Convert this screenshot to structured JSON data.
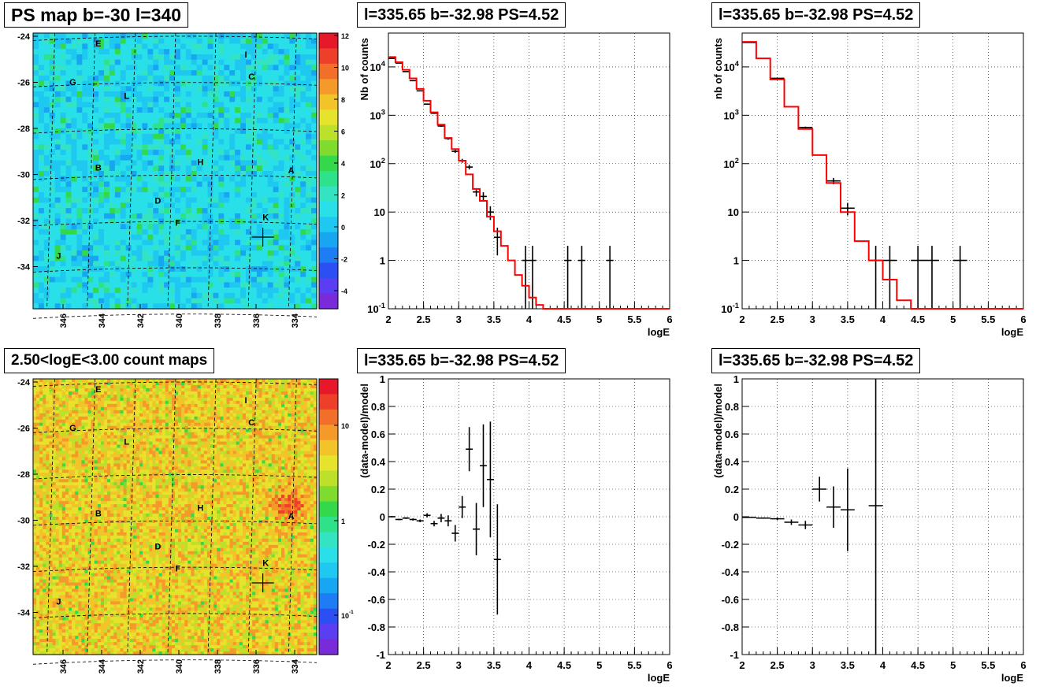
{
  "colors": {
    "data": "#000000",
    "model": "#ff0000",
    "grid": "#000000",
    "map_lines": "#000000"
  },
  "chart_data": [
    {
      "type": "heatmap",
      "title": "PS map b=-30 l=340",
      "x_ticks": [
        "346",
        "344",
        "342",
        "340",
        "338",
        "336",
        "334"
      ],
      "y_ticks": [
        "-24",
        "-26",
        "-28",
        "-30",
        "-32",
        "-34"
      ],
      "colorbar_ticks": [
        "12",
        "10",
        "8",
        "6",
        "4",
        "2",
        "0",
        "-2",
        "-4"
      ],
      "colormap": "rainbow",
      "dominant_color": "cyan",
      "sources": [
        "E",
        "I",
        "C",
        "G",
        "L",
        "B",
        "H",
        "A",
        "D",
        "K",
        "F",
        "J"
      ]
    },
    {
      "type": "line",
      "title": "l=335.65 b=-32.98 PS=4.52",
      "xlabel": "logE",
      "ylabel": "Nb of counts",
      "xlim": [
        2,
        6
      ],
      "ylim": [
        0.1,
        50000
      ],
      "log_y": true,
      "grid": true,
      "x_ticks": [
        "2",
        "2.5",
        "3",
        "3.5",
        "4",
        "4.5",
        "5",
        "5.5",
        "6"
      ],
      "y_ticks": [
        "10^-1",
        "1",
        "10",
        "10^2",
        "10^3",
        "10^4"
      ],
      "series": [
        {
          "style": "points",
          "x": [
            2.05,
            2.15,
            2.25,
            2.35,
            2.45,
            2.55,
            2.65,
            2.75,
            2.85,
            2.95,
            3.05,
            3.15,
            3.25,
            3.35,
            3.45,
            3.55,
            3.95,
            4.05,
            4.55,
            4.75,
            5.15
          ],
          "y": [
            15000,
            12000,
            8000,
            5200,
            3200,
            1700,
            1100,
            600,
            330,
            180,
            115,
            85,
            26,
            21,
            10,
            3,
            1,
            1,
            1,
            1,
            1
          ]
        },
        {
          "style": "step",
          "x": [
            2,
            2.1,
            2.2,
            2.3,
            2.4,
            2.5,
            2.6,
            2.7,
            2.8,
            2.9,
            3.0,
            3.1,
            3.2,
            3.3,
            3.4,
            3.5,
            3.6,
            3.7,
            3.8,
            3.9,
            4.0,
            4.1,
            4.2
          ],
          "y": [
            16000,
            12500,
            8700,
            5800,
            3500,
            2000,
            1150,
            640,
            340,
            200,
            115,
            60,
            30,
            17,
            8,
            4,
            2,
            1,
            0.5,
            0.3,
            0.17,
            0.12,
            0.1
          ]
        }
      ]
    },
    {
      "type": "line",
      "title": "l=335.65 b=-32.98 PS=4.52",
      "xlabel": "logE",
      "ylabel": "nb of counts",
      "xlim": [
        2,
        6
      ],
      "ylim": [
        0.1,
        50000
      ],
      "log_y": true,
      "grid": true,
      "x_ticks": [
        "2",
        "2.5",
        "3",
        "3.5",
        "4",
        "4.5",
        "5",
        "5.5",
        "6"
      ],
      "y_ticks": [
        "10^-1",
        "1",
        "10",
        "10^2",
        "10^3",
        "10^4"
      ],
      "series": [
        {
          "style": "points",
          "x": [
            2.1,
            2.5,
            2.9,
            3.3,
            3.5,
            3.9,
            4.1,
            4.5,
            4.7,
            5.1
          ],
          "y": [
            32000,
            5800,
            560,
            44,
            12,
            1,
            1,
            1,
            1,
            1
          ],
          "xerr": [
            0.1,
            0.1,
            0.1,
            0.1,
            0.1,
            0.1,
            0.1,
            0.1,
            0.1,
            0.1
          ]
        },
        {
          "style": "step",
          "x": [
            2,
            2.2,
            2.4,
            2.6,
            2.8,
            3.0,
            3.2,
            3.4,
            3.6,
            3.8,
            4.0,
            4.2,
            4.4
          ],
          "y": [
            33000,
            15000,
            5500,
            1500,
            520,
            150,
            40,
            10,
            2.5,
            1,
            0.4,
            0.15,
            0.1
          ]
        }
      ]
    },
    {
      "type": "heatmap",
      "title": "2.50<logE<3.00 count maps",
      "x_ticks": [
        "346",
        "344",
        "342",
        "340",
        "338",
        "336",
        "334"
      ],
      "y_ticks": [
        "-24",
        "-26",
        "-28",
        "-30",
        "-32",
        "-34"
      ],
      "colorbar_ticks": [
        "10",
        "1",
        "10^-1"
      ],
      "colormap": "rainbow",
      "dominant_color": "yellow-orange",
      "sources": [
        "E",
        "I",
        "C",
        "G",
        "L",
        "B",
        "H",
        "A",
        "D",
        "K",
        "F",
        "J"
      ]
    },
    {
      "type": "scatter",
      "title": "l=335.65 b=-32.98 PS=4.52",
      "xlabel": "logE",
      "ylabel": "(data-model)/model",
      "xlim": [
        2,
        6
      ],
      "ylim": [
        -1,
        1
      ],
      "grid": true,
      "x_ticks": [
        "2",
        "2.5",
        "3",
        "3.5",
        "4",
        "4.5",
        "5",
        "5.5",
        "6"
      ],
      "y_ticks": [
        "1",
        "0.8",
        "0.6",
        "0.4",
        "0.2",
        "0",
        "-0.2",
        "-0.4",
        "-0.6",
        "-0.8",
        "-1"
      ],
      "series": [
        {
          "x": [
            2.05,
            2.15,
            2.25,
            2.35,
            2.45,
            2.55,
            2.65,
            2.75,
            2.85,
            2.95,
            3.05,
            3.15,
            3.25,
            3.35,
            3.45,
            3.55
          ],
          "y": [
            0.0,
            -0.02,
            -0.01,
            -0.02,
            -0.03,
            0.01,
            -0.05,
            -0.01,
            -0.03,
            -0.12,
            0.07,
            0.49,
            -0.09,
            0.37,
            0.27,
            -0.31
          ],
          "yerr": [
            0.005,
            0.005,
            0.006,
            0.008,
            0.01,
            0.015,
            0.02,
            0.03,
            0.04,
            0.06,
            0.08,
            0.16,
            0.19,
            0.3,
            0.42,
            0.4
          ],
          "xerr": [
            0.05,
            0.05,
            0.05,
            0.05,
            0.05,
            0.05,
            0.05,
            0.05,
            0.05,
            0.05,
            0.05,
            0.05,
            0.05,
            0.05,
            0.05,
            0.05
          ]
        }
      ]
    },
    {
      "type": "scatter",
      "title": "l=335.65 b=-32.98 PS=4.52",
      "xlabel": "logE",
      "ylabel": "(data-model)/model",
      "xlim": [
        2,
        6
      ],
      "ylim": [
        -1,
        1
      ],
      "grid": true,
      "x_ticks": [
        "2",
        "2.5",
        "3",
        "3.5",
        "4",
        "4.5",
        "5",
        "5.5",
        "6"
      ],
      "y_ticks": [
        "1",
        "0.8",
        "0.6",
        "0.4",
        "0.2",
        "0",
        "-0.2",
        "-0.4",
        "-0.6",
        "-0.8",
        "-1"
      ],
      "series": [
        {
          "x": [
            2.1,
            2.3,
            2.5,
            2.7,
            2.9,
            3.1,
            3.3,
            3.5,
            3.9
          ],
          "y": [
            -0.005,
            -0.01,
            -0.015,
            -0.04,
            -0.06,
            0.2,
            0.07,
            0.05,
            0.08
          ],
          "yerr": [
            0.003,
            0.005,
            0.01,
            0.02,
            0.03,
            0.09,
            0.15,
            0.3,
            1.1
          ],
          "xerr": [
            0.1,
            0.1,
            0.1,
            0.1,
            0.1,
            0.1,
            0.1,
            0.1,
            0.1
          ]
        }
      ]
    }
  ]
}
